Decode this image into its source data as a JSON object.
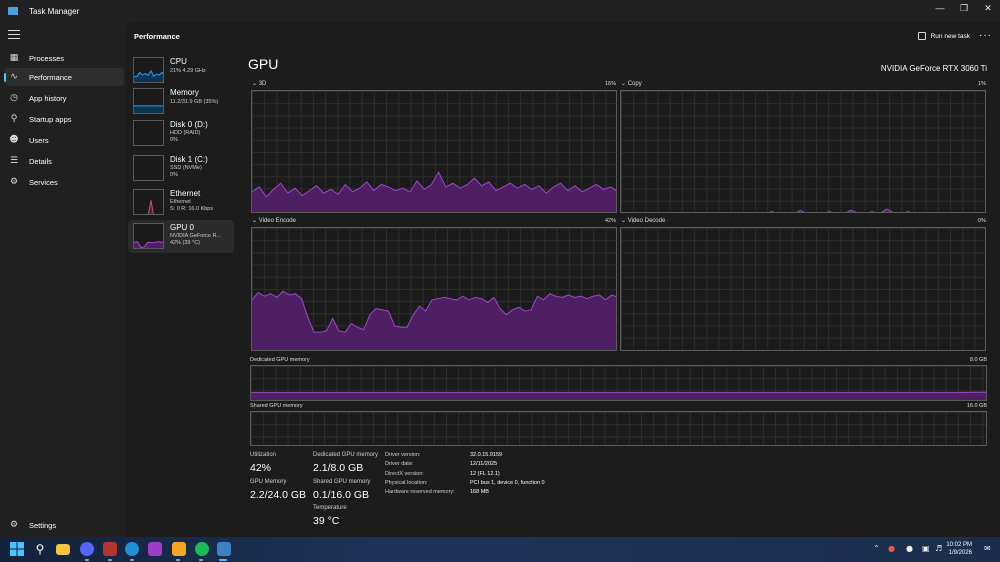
{
  "window": {
    "title": "Task Manager"
  },
  "nav": {
    "items": [
      {
        "label": "Processes",
        "icon": "processes-icon"
      },
      {
        "label": "Performance",
        "icon": "performance-icon"
      },
      {
        "label": "App history",
        "icon": "history-icon"
      },
      {
        "label": "Startup apps",
        "icon": "startup-icon"
      },
      {
        "label": "Users",
        "icon": "users-icon"
      },
      {
        "label": "Details",
        "icon": "details-icon"
      },
      {
        "label": "Services",
        "icon": "services-icon"
      }
    ],
    "settings": "Settings"
  },
  "header": {
    "title": "Performance",
    "run_new_task": "Run new task"
  },
  "devices": [
    {
      "name": "CPU",
      "sub1": "21%  4.29 GHz",
      "sub2": "",
      "sub3": ""
    },
    {
      "name": "Memory",
      "sub1": "11.2/31.9 GB (35%)",
      "sub2": "",
      "sub3": ""
    },
    {
      "name": "Disk 0 (D:)",
      "sub1": "HDD (RAID)",
      "sub2": "0%",
      "sub3": ""
    },
    {
      "name": "Disk 1 (C:)",
      "sub1": "SSD (NVMe)",
      "sub2": "0%",
      "sub3": ""
    },
    {
      "name": "Ethernet",
      "sub1": "Ethernet",
      "sub2": "S: 0  R: 16.0 Kbps",
      "sub3": ""
    },
    {
      "name": "GPU 0",
      "sub1": "NVIDIA GeForce R...",
      "sub2": "42% (39 °C)",
      "sub3": ""
    }
  ],
  "gpu": {
    "title": "GPU",
    "model": "NVIDIA GeForce RTX 3060 Ti",
    "engines": [
      {
        "name": "3D",
        "max": "16%"
      },
      {
        "name": "Copy",
        "max": "1%"
      },
      {
        "name": "Video Encode",
        "max": "42%"
      },
      {
        "name": "Video Decode",
        "max": "0%"
      }
    ],
    "dedicated_label": "Dedicated GPU memory",
    "dedicated_max": "8.0 GB",
    "shared_label": "Shared GPU memory",
    "shared_max": "16.0 GB",
    "stats": {
      "utilization_label": "Utilization",
      "utilization": "42%",
      "gpu_memory_label": "GPU Memory",
      "gpu_memory": "2.2/24.0 GB",
      "dedicated_label": "Dedicated GPU memory",
      "dedicated": "2.1/8.0 GB",
      "shared_label": "Shared GPU memory",
      "shared": "0.1/16.0 GB",
      "temperature_label": "Temperature",
      "temperature": "39 °C"
    },
    "info": [
      {
        "key": "Driver version:",
        "value": "32.0.15.9159"
      },
      {
        "key": "Driver date:",
        "value": "12/11/2025"
      },
      {
        "key": "DirectX version:",
        "value": "12 (FL 12.1)"
      },
      {
        "key": "Physical location:",
        "value": "PCI bus 1, device 0, function 0"
      },
      {
        "key": "Hardware reserved memory:",
        "value": "168 MB"
      }
    ]
  },
  "series": {
    "3d": [
      18,
      22,
      14,
      20,
      25,
      17,
      21,
      15,
      19,
      23,
      17,
      20,
      16,
      24,
      18,
      21,
      26,
      19,
      24,
      22,
      19,
      21,
      18,
      27,
      20,
      24,
      34,
      22,
      25,
      21,
      24,
      29,
      23,
      26,
      19,
      22,
      25,
      21,
      24,
      20,
      23,
      17,
      22,
      25,
      19,
      23,
      18,
      21,
      24,
      20,
      22,
      18
    ],
    "copy": [
      0,
      0,
      0,
      0,
      0,
      0,
      0,
      0,
      0,
      0,
      0,
      0,
      0,
      0,
      0,
      0,
      0,
      0,
      0,
      0,
      0,
      2,
      0,
      0,
      0,
      3,
      0,
      1,
      0,
      2,
      0,
      0,
      3,
      1,
      0,
      2,
      0,
      4,
      1,
      0,
      2,
      0,
      0,
      1,
      0,
      0,
      0,
      0,
      0,
      0,
      0,
      0
    ],
    "encode": [
      42,
      48,
      45,
      47,
      44,
      49,
      46,
      47,
      43,
      28,
      16,
      16,
      17,
      27,
      17,
      16,
      23,
      20,
      18,
      30,
      35,
      34,
      33,
      21,
      20,
      20,
      30,
      37,
      33,
      42,
      43,
      44,
      43,
      42,
      45,
      42,
      44,
      43,
      40,
      44,
      35,
      30,
      34,
      36,
      33,
      34,
      45,
      42,
      47,
      45,
      44,
      46,
      44,
      45,
      43,
      45,
      46,
      42,
      46,
      44
    ],
    "decode": [],
    "dedicated": [
      26,
      26,
      26,
      26,
      26,
      26,
      26,
      26,
      26,
      26,
      26,
      26,
      26,
      26,
      26,
      26,
      26,
      26,
      26,
      26,
      26,
      26,
      26,
      26,
      26,
      26,
      26,
      26,
      26,
      26,
      26,
      26,
      26,
      26,
      26,
      26,
      26,
      26,
      26,
      26,
      26,
      26,
      26,
      26,
      26,
      26,
      26,
      26,
      27,
      27
    ],
    "shared": [
      1,
      1,
      1,
      1,
      1,
      1,
      1,
      1,
      1,
      1,
      1,
      1,
      1,
      1,
      1,
      1,
      1,
      1,
      1,
      1
    ],
    "cpu_thumb": [
      30,
      28,
      45,
      35,
      40,
      33,
      50,
      30,
      38,
      35,
      45,
      32
    ],
    "memory_thumb": [
      35,
      35,
      35,
      35,
      35,
      35
    ],
    "ethernet_thumb": [
      0,
      0,
      0,
      0,
      0,
      0,
      60,
      0,
      0,
      0,
      0,
      0
    ],
    "gpu_thumb": [
      30,
      32,
      10,
      12,
      30,
      28,
      29,
      32,
      30,
      31
    ]
  },
  "taskbar": {
    "clock_time": "10:02 PM",
    "clock_date": "1/9/2026"
  },
  "colors": {
    "accent": "#4cc2ff",
    "gpu_purple": "#9c48c9",
    "gpu_fill": "#4f1f63",
    "cpu_blue": "#1ea1ff"
  }
}
